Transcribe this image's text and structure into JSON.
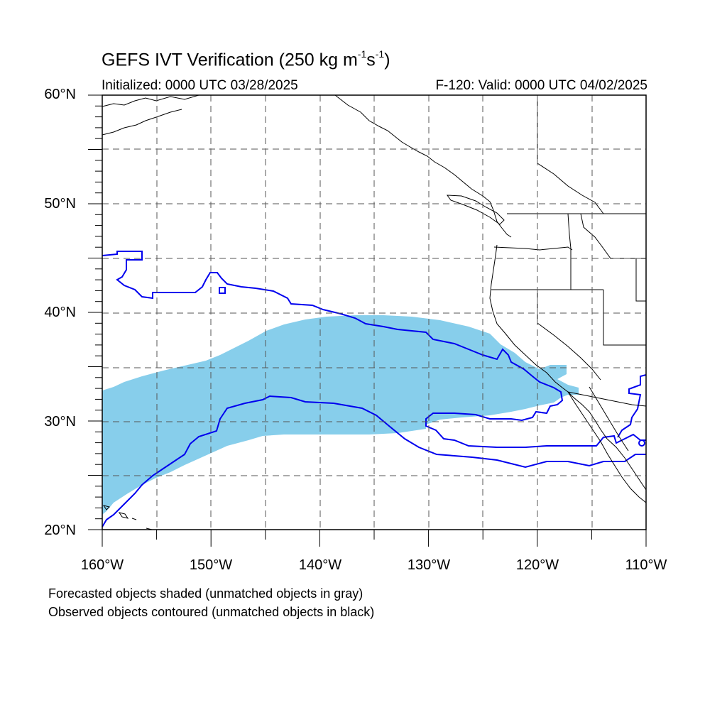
{
  "header": {
    "title_main": "GEFS IVT Verification (250 kg m",
    "title_exp1": "-1",
    "title_mid": "s",
    "title_exp2": "-1",
    "title_end": ")",
    "initialized": "Initialized: 0000 UTC 03/28/2025",
    "valid": "F-120: Valid: 0000 UTC 04/02/2025"
  },
  "axes": {
    "lat_labels": [
      {
        "value": 60,
        "text": "60°N"
      },
      {
        "value": 50,
        "text": "50°N"
      },
      {
        "value": 40,
        "text": "40°N"
      },
      {
        "value": 30,
        "text": "30°N"
      },
      {
        "value": 20,
        "text": "20°N"
      }
    ],
    "lon_labels": [
      {
        "value": -160,
        "text": "160°W"
      },
      {
        "value": -150,
        "text": "150°W"
      },
      {
        "value": -140,
        "text": "140°W"
      },
      {
        "value": -130,
        "text": "130°W"
      },
      {
        "value": -120,
        "text": "120°W"
      },
      {
        "value": -110,
        "text": "110°W"
      }
    ],
    "lat_range": [
      20,
      60
    ],
    "lon_range": [
      -160,
      -110
    ]
  },
  "legend": {
    "line1": "Forecasted objects shaded (unmatched objects in gray)",
    "line2": "Observed objects contoured (unmatched objects in black)"
  },
  "colors": {
    "forecast_fill": "#87ceeb",
    "observed_contour": "#0000ee",
    "coastline": "#000000",
    "gridline": "#555555"
  }
}
